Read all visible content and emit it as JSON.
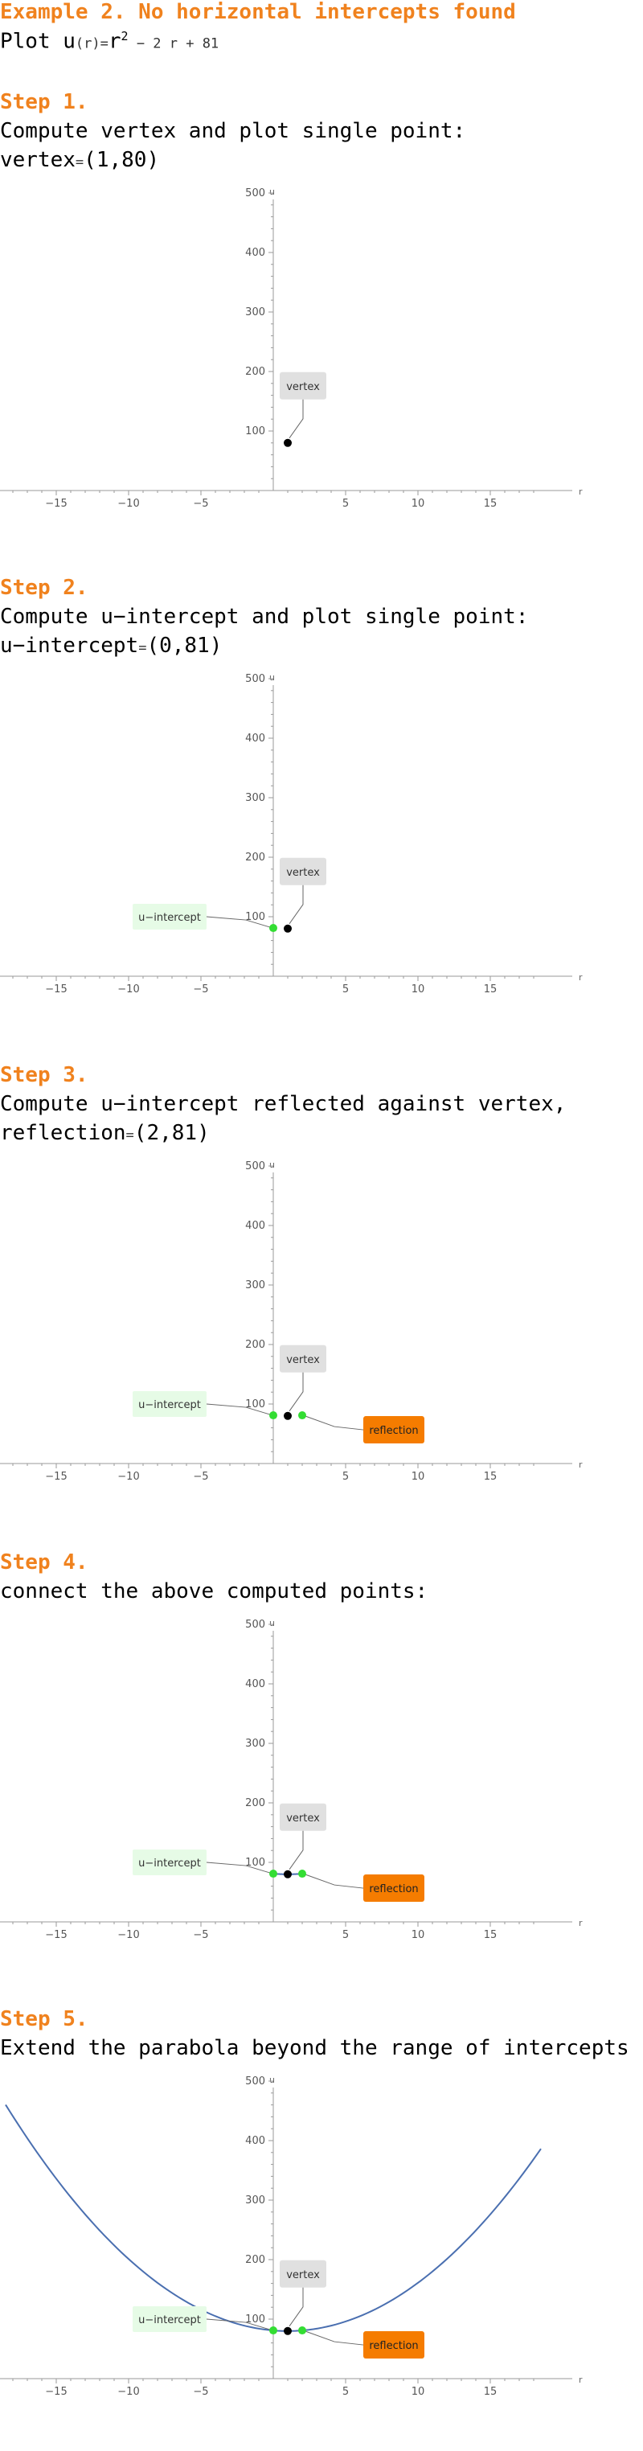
{
  "header": {
    "title": "Example 2. No horizontal intercepts found",
    "plot_prefix": "Plot u",
    "plot_func": "(r)",
    "plot_eq": "=",
    "plot_r": "r",
    "plot_exp": "2",
    "plot_rest": " − 2 r + 81"
  },
  "steps": [
    {
      "title": "Step 1.",
      "line1": "Compute vertex and plot single point:",
      "line2_label": "vertex",
      "line2_op": "=",
      "line2_value": "(1,80)"
    },
    {
      "title": "Step 2.",
      "line1": "Compute u−intercept and plot single point:",
      "line2_label": "u−intercept",
      "line2_op": "=",
      "line2_value": "(0,81)"
    },
    {
      "title": "Step 3.",
      "line1": "Compute u−intercept reflected against vertex,",
      "line2_label": "reflection",
      "line2_op": "=",
      "line2_value": "(2,81)"
    },
    {
      "title": "Step 4.",
      "line1": "connect the above computed points:"
    },
    {
      "title": "Step 5.",
      "line1": "Extend the parabola beyond the range of intercepts"
    }
  ],
  "colors": {
    "heading": "#f0821e",
    "vertex_point": "#000000",
    "intercept_point": "#33dd33",
    "curve": "#4a6fb0",
    "vertex_label_bg": "#e0e0e0",
    "intercept_label_bg": "#e6fbe6",
    "reflection_label_bg": "#f57c00"
  },
  "chart_data": [
    {
      "type": "scatter",
      "xlabel": "r",
      "ylabel": "u",
      "xlim": [
        -19,
        19
      ],
      "ylim": [
        -5,
        520
      ],
      "xticks": [
        -15,
        -10,
        -5,
        5,
        10,
        15
      ],
      "yticks": [
        100,
        200,
        300,
        400,
        500
      ],
      "points": [
        {
          "x": 1,
          "y": 80,
          "kind": "vertex"
        }
      ],
      "labels": [
        {
          "text": "vertex",
          "kind": "vertex"
        }
      ]
    },
    {
      "type": "scatter",
      "xlabel": "r",
      "ylabel": "u",
      "xlim": [
        -19,
        19
      ],
      "ylim": [
        -5,
        520
      ],
      "xticks": [
        -15,
        -10,
        -5,
        5,
        10,
        15
      ],
      "yticks": [
        100,
        200,
        300,
        400,
        500
      ],
      "points": [
        {
          "x": 1,
          "y": 80,
          "kind": "vertex"
        },
        {
          "x": 0,
          "y": 81,
          "kind": "intercept"
        }
      ],
      "labels": [
        {
          "text": "vertex",
          "kind": "vertex"
        },
        {
          "text": "u−intercept",
          "kind": "intercept"
        }
      ]
    },
    {
      "type": "scatter",
      "xlabel": "r",
      "ylabel": "u",
      "xlim": [
        -19,
        19
      ],
      "ylim": [
        -5,
        520
      ],
      "xticks": [
        -15,
        -10,
        -5,
        5,
        10,
        15
      ],
      "yticks": [
        100,
        200,
        300,
        400,
        500
      ],
      "points": [
        {
          "x": 1,
          "y": 80,
          "kind": "vertex"
        },
        {
          "x": 0,
          "y": 81,
          "kind": "intercept"
        },
        {
          "x": 2,
          "y": 81,
          "kind": "reflection"
        }
      ],
      "labels": [
        {
          "text": "vertex",
          "kind": "vertex"
        },
        {
          "text": "u−intercept",
          "kind": "intercept"
        },
        {
          "text": "reflection",
          "kind": "reflection"
        }
      ]
    },
    {
      "type": "line",
      "xlabel": "r",
      "ylabel": "u",
      "xlim": [
        -19,
        19
      ],
      "ylim": [
        -5,
        520
      ],
      "xticks": [
        -15,
        -10,
        -5,
        5,
        10,
        15
      ],
      "yticks": [
        100,
        200,
        300,
        400,
        500
      ],
      "curve": {
        "range": [
          0,
          2
        ]
      },
      "points": [
        {
          "x": 1,
          "y": 80,
          "kind": "vertex"
        },
        {
          "x": 0,
          "y": 81,
          "kind": "intercept"
        },
        {
          "x": 2,
          "y": 81,
          "kind": "reflection"
        }
      ],
      "labels": [
        {
          "text": "vertex",
          "kind": "vertex"
        },
        {
          "text": "u−intercept",
          "kind": "intercept"
        },
        {
          "text": "reflection",
          "kind": "reflection"
        }
      ]
    },
    {
      "type": "line",
      "xlabel": "r",
      "ylabel": "u",
      "xlim": [
        -19,
        19
      ],
      "ylim": [
        -5,
        520
      ],
      "xticks": [
        -15,
        -10,
        -5,
        5,
        10,
        15
      ],
      "yticks": [
        100,
        200,
        300,
        400,
        500
      ],
      "curve": {
        "range": [
          -18.5,
          18.5
        ]
      },
      "points": [
        {
          "x": 1,
          "y": 80,
          "kind": "vertex"
        },
        {
          "x": 0,
          "y": 81,
          "kind": "intercept"
        },
        {
          "x": 2,
          "y": 81,
          "kind": "reflection"
        }
      ],
      "labels": [
        {
          "text": "vertex",
          "kind": "vertex"
        },
        {
          "text": "u−intercept",
          "kind": "intercept"
        },
        {
          "text": "reflection",
          "kind": "reflection"
        }
      ]
    }
  ]
}
